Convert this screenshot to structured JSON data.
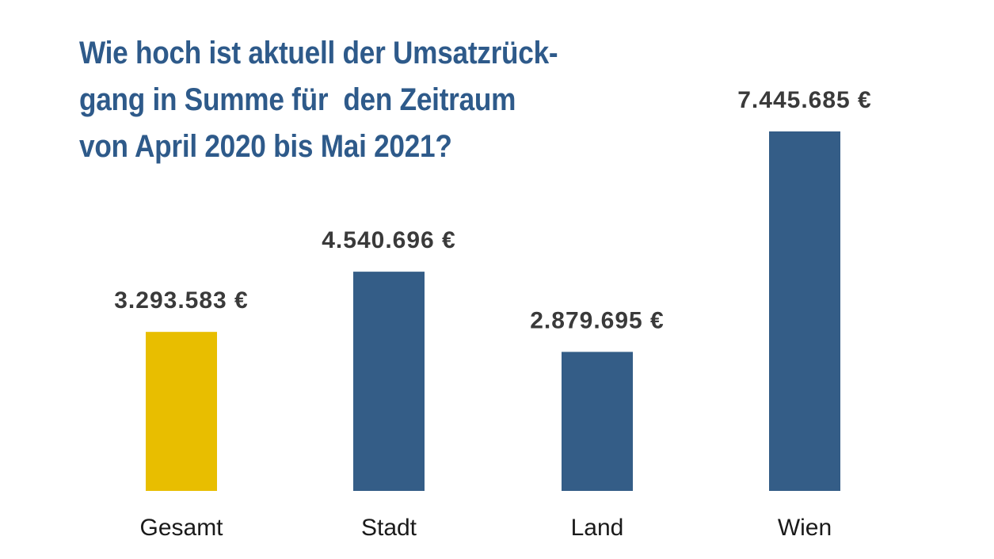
{
  "chart_data": {
    "type": "bar",
    "title_lines": [
      "Wie hoch ist aktuell der Umsatzrück-",
      "gang in Summe für  den Zeitraum",
      "von April 2020 bis Mai 2021?"
    ],
    "categories": [
      "Gesamt",
      "Stadt",
      "Land",
      "Wien"
    ],
    "values": [
      3293583,
      4540696,
      2879695,
      7445685
    ],
    "value_labels": [
      "3.293.583 €",
      "4.540.696 €",
      "2.879.695 €",
      "7.445.685 €"
    ],
    "bar_colors": [
      "#e8be00",
      "#345d87",
      "#345d87",
      "#345d87"
    ],
    "ylim": [
      0,
      7445685
    ],
    "grid": false,
    "legend": "none"
  },
  "colors": {
    "title": "#2e5a8a",
    "value_label": "#3a3a3a",
    "category_label": "#1a1a1a"
  }
}
